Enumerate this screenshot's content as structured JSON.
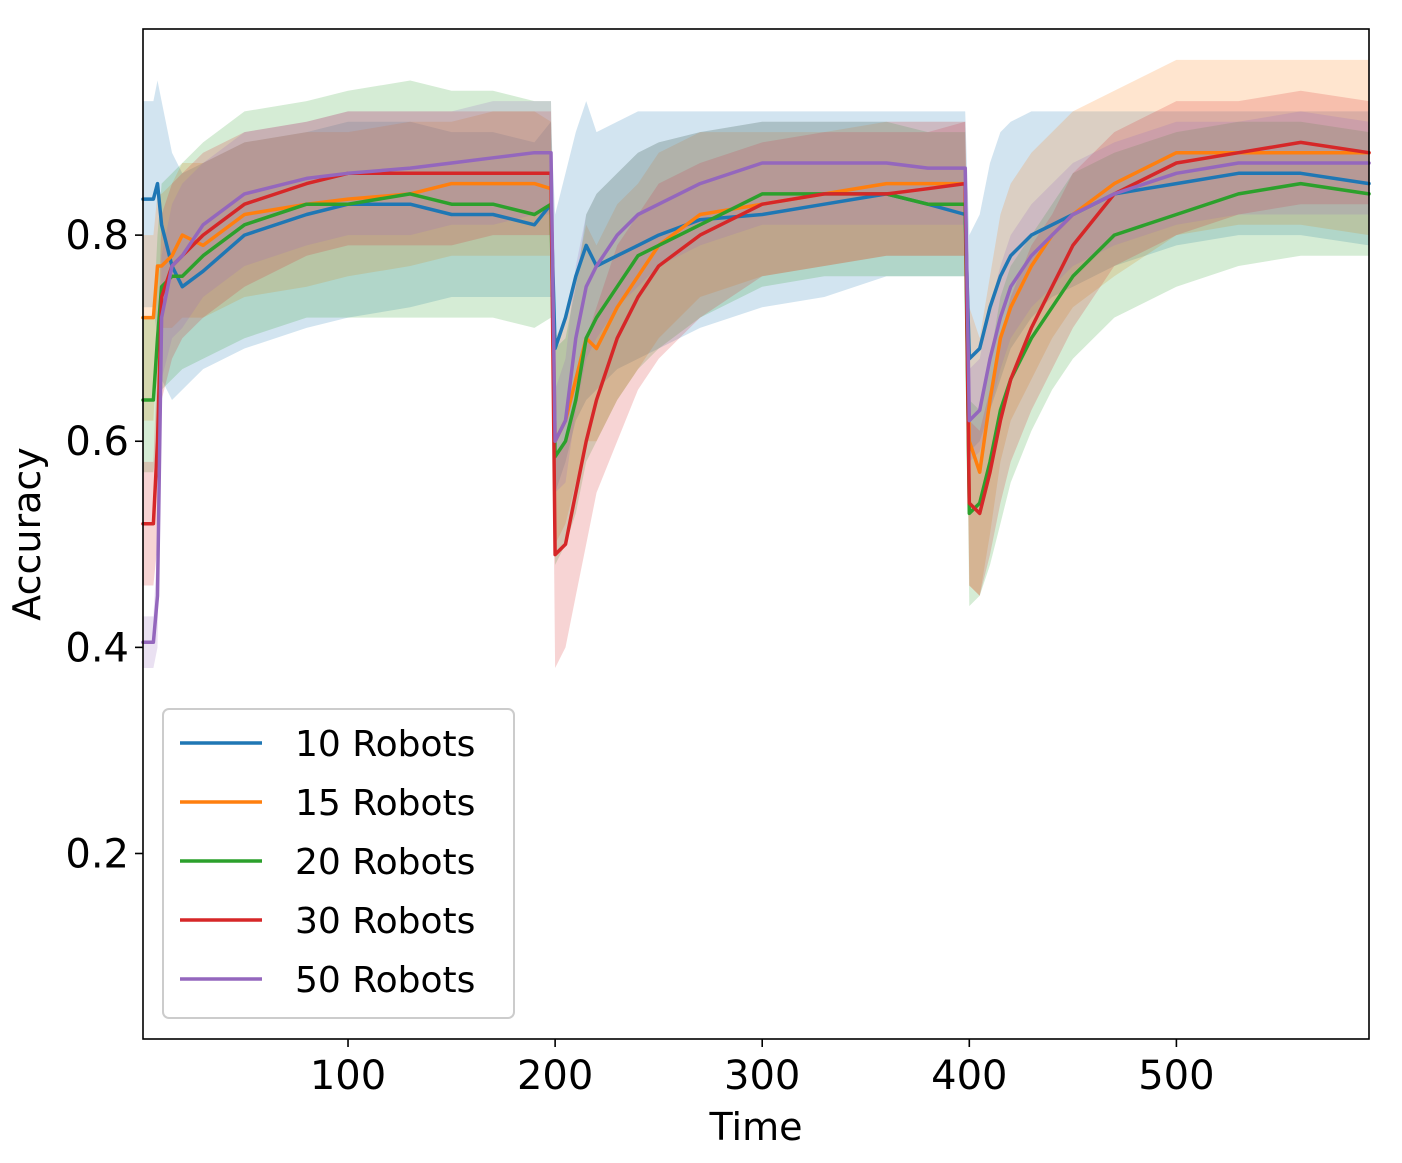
{
  "chart_data": {
    "type": "line",
    "title": "",
    "xlabel": "Time",
    "ylabel": "Accuracy",
    "xlim": [
      1,
      593
    ],
    "ylim": [
      0.02,
      1.0
    ],
    "xticks": [
      100,
      200,
      300,
      400,
      500
    ],
    "xtick_labels": [
      "100",
      "200",
      "300",
      "400",
      "500"
    ],
    "yticks": [
      0.2,
      0.4,
      0.6,
      0.8
    ],
    "ytick_labels": [
      "0.2",
      "0.4",
      "0.6",
      "0.8"
    ],
    "grid": false,
    "legend_position": "lower-left",
    "series": [
      {
        "name": "10 Robots",
        "color": "#1f77b4",
        "x": [
          1,
          6,
          8,
          10,
          15,
          20,
          30,
          50,
          80,
          100,
          130,
          150,
          170,
          190,
          198,
          200,
          205,
          210,
          215,
          220,
          230,
          240,
          250,
          270,
          300,
          330,
          360,
          380,
          398,
          400,
          405,
          410,
          415,
          420,
          430,
          440,
          450,
          470,
          500,
          530,
          560,
          593
        ],
        "values": [
          0.835,
          0.835,
          0.85,
          0.81,
          0.77,
          0.75,
          0.765,
          0.8,
          0.82,
          0.83,
          0.83,
          0.82,
          0.82,
          0.81,
          0.83,
          0.69,
          0.72,
          0.76,
          0.79,
          0.77,
          0.78,
          0.79,
          0.8,
          0.815,
          0.82,
          0.83,
          0.84,
          0.83,
          0.82,
          0.68,
          0.69,
          0.73,
          0.76,
          0.78,
          0.8,
          0.81,
          0.82,
          0.84,
          0.85,
          0.86,
          0.86,
          0.85
        ],
        "lower": [
          0.73,
          0.73,
          0.7,
          0.66,
          0.64,
          0.65,
          0.67,
          0.69,
          0.71,
          0.72,
          0.73,
          0.74,
          0.74,
          0.74,
          0.74,
          0.55,
          0.58,
          0.62,
          0.64,
          0.65,
          0.67,
          0.68,
          0.69,
          0.71,
          0.73,
          0.74,
          0.76,
          0.76,
          0.76,
          0.59,
          0.6,
          0.63,
          0.66,
          0.69,
          0.72,
          0.74,
          0.75,
          0.77,
          0.79,
          0.8,
          0.8,
          0.79
        ],
        "upper": [
          0.93,
          0.93,
          0.95,
          0.93,
          0.88,
          0.86,
          0.87,
          0.89,
          0.9,
          0.91,
          0.91,
          0.9,
          0.9,
          0.89,
          0.91,
          0.82,
          0.86,
          0.9,
          0.93,
          0.9,
          0.91,
          0.92,
          0.92,
          0.92,
          0.92,
          0.92,
          0.92,
          0.92,
          0.92,
          0.8,
          0.82,
          0.87,
          0.9,
          0.91,
          0.92,
          0.92,
          0.92,
          0.92,
          0.92,
          0.92,
          0.92,
          0.92
        ]
      },
      {
        "name": "15 Robots",
        "color": "#ff7f0e",
        "x": [
          1,
          6,
          8,
          10,
          15,
          20,
          30,
          50,
          80,
          100,
          130,
          150,
          170,
          190,
          198,
          200,
          205,
          210,
          215,
          220,
          230,
          240,
          250,
          270,
          300,
          330,
          360,
          380,
          398,
          400,
          405,
          410,
          415,
          420,
          430,
          440,
          450,
          470,
          500,
          530,
          560,
          593
        ],
        "values": [
          0.72,
          0.72,
          0.77,
          0.77,
          0.78,
          0.8,
          0.79,
          0.82,
          0.83,
          0.835,
          0.84,
          0.85,
          0.85,
          0.85,
          0.845,
          0.6,
          0.62,
          0.66,
          0.7,
          0.69,
          0.73,
          0.76,
          0.79,
          0.82,
          0.83,
          0.84,
          0.85,
          0.85,
          0.85,
          0.6,
          0.57,
          0.64,
          0.7,
          0.73,
          0.77,
          0.8,
          0.82,
          0.85,
          0.88,
          0.88,
          0.88,
          0.88
        ],
        "lower": [
          0.62,
          0.62,
          0.7,
          0.71,
          0.71,
          0.72,
          0.72,
          0.74,
          0.75,
          0.76,
          0.77,
          0.78,
          0.78,
          0.78,
          0.78,
          0.5,
          0.52,
          0.56,
          0.6,
          0.6,
          0.64,
          0.67,
          0.7,
          0.74,
          0.76,
          0.77,
          0.78,
          0.78,
          0.78,
          0.46,
          0.45,
          0.51,
          0.58,
          0.62,
          0.66,
          0.7,
          0.73,
          0.76,
          0.8,
          0.81,
          0.81,
          0.8
        ],
        "upper": [
          0.8,
          0.8,
          0.84,
          0.84,
          0.85,
          0.87,
          0.87,
          0.89,
          0.9,
          0.9,
          0.91,
          0.91,
          0.92,
          0.92,
          0.91,
          0.7,
          0.72,
          0.76,
          0.81,
          0.79,
          0.83,
          0.85,
          0.88,
          0.9,
          0.9,
          0.9,
          0.91,
          0.91,
          0.91,
          0.73,
          0.7,
          0.76,
          0.82,
          0.85,
          0.88,
          0.9,
          0.92,
          0.94,
          0.97,
          0.97,
          0.97,
          0.97
        ]
      },
      {
        "name": "20 Robots",
        "color": "#2ca02c",
        "x": [
          1,
          6,
          8,
          10,
          15,
          20,
          30,
          50,
          80,
          100,
          130,
          150,
          170,
          190,
          198,
          200,
          205,
          210,
          215,
          220,
          230,
          240,
          250,
          270,
          300,
          330,
          360,
          380,
          398,
          400,
          405,
          410,
          415,
          420,
          430,
          440,
          450,
          470,
          500,
          530,
          560,
          593
        ],
        "values": [
          0.64,
          0.64,
          0.7,
          0.75,
          0.76,
          0.76,
          0.78,
          0.81,
          0.83,
          0.83,
          0.84,
          0.83,
          0.83,
          0.82,
          0.83,
          0.585,
          0.6,
          0.64,
          0.7,
          0.72,
          0.75,
          0.78,
          0.79,
          0.81,
          0.84,
          0.84,
          0.84,
          0.83,
          0.83,
          0.53,
          0.54,
          0.58,
          0.63,
          0.66,
          0.7,
          0.73,
          0.76,
          0.8,
          0.82,
          0.84,
          0.85,
          0.84
        ],
        "lower": [
          0.57,
          0.57,
          0.6,
          0.65,
          0.66,
          0.67,
          0.68,
          0.7,
          0.72,
          0.72,
          0.72,
          0.72,
          0.72,
          0.71,
          0.72,
          0.48,
          0.5,
          0.53,
          0.58,
          0.6,
          0.64,
          0.67,
          0.69,
          0.72,
          0.75,
          0.76,
          0.76,
          0.76,
          0.76,
          0.44,
          0.45,
          0.48,
          0.52,
          0.56,
          0.61,
          0.65,
          0.68,
          0.72,
          0.75,
          0.77,
          0.78,
          0.78
        ],
        "upper": [
          0.72,
          0.72,
          0.8,
          0.85,
          0.86,
          0.87,
          0.89,
          0.92,
          0.93,
          0.94,
          0.95,
          0.94,
          0.94,
          0.93,
          0.93,
          0.69,
          0.7,
          0.75,
          0.82,
          0.84,
          0.86,
          0.88,
          0.89,
          0.9,
          0.91,
          0.91,
          0.91,
          0.9,
          0.9,
          0.64,
          0.63,
          0.68,
          0.74,
          0.77,
          0.8,
          0.83,
          0.86,
          0.88,
          0.9,
          0.91,
          0.91,
          0.9
        ]
      },
      {
        "name": "30 Robots",
        "color": "#d62728",
        "x": [
          1,
          6,
          8,
          10,
          15,
          20,
          30,
          50,
          80,
          100,
          130,
          150,
          170,
          190,
          198,
          200,
          205,
          210,
          215,
          220,
          230,
          240,
          250,
          270,
          300,
          330,
          360,
          380,
          398,
          400,
          405,
          410,
          415,
          420,
          430,
          440,
          450,
          470,
          500,
          530,
          560,
          593
        ],
        "values": [
          0.52,
          0.52,
          0.6,
          0.74,
          0.77,
          0.78,
          0.8,
          0.83,
          0.85,
          0.86,
          0.86,
          0.86,
          0.86,
          0.86,
          0.86,
          0.49,
          0.5,
          0.55,
          0.6,
          0.64,
          0.7,
          0.74,
          0.77,
          0.8,
          0.83,
          0.84,
          0.84,
          0.845,
          0.85,
          0.54,
          0.53,
          0.57,
          0.62,
          0.66,
          0.71,
          0.75,
          0.79,
          0.84,
          0.87,
          0.88,
          0.89,
          0.88
        ],
        "lower": [
          0.46,
          0.46,
          0.5,
          0.64,
          0.68,
          0.7,
          0.72,
          0.75,
          0.78,
          0.79,
          0.79,
          0.79,
          0.8,
          0.8,
          0.8,
          0.38,
          0.4,
          0.45,
          0.5,
          0.55,
          0.6,
          0.65,
          0.68,
          0.72,
          0.76,
          0.77,
          0.78,
          0.78,
          0.78,
          0.46,
          0.45,
          0.49,
          0.54,
          0.58,
          0.63,
          0.67,
          0.71,
          0.77,
          0.8,
          0.82,
          0.83,
          0.83
        ],
        "upper": [
          0.58,
          0.58,
          0.68,
          0.82,
          0.85,
          0.86,
          0.88,
          0.9,
          0.91,
          0.92,
          0.92,
          0.92,
          0.92,
          0.92,
          0.92,
          0.59,
          0.6,
          0.65,
          0.7,
          0.73,
          0.79,
          0.82,
          0.85,
          0.87,
          0.89,
          0.9,
          0.9,
          0.9,
          0.91,
          0.62,
          0.61,
          0.65,
          0.7,
          0.74,
          0.79,
          0.82,
          0.86,
          0.9,
          0.93,
          0.93,
          0.94,
          0.93
        ]
      },
      {
        "name": "50 Robots",
        "color": "#9467bd",
        "x": [
          1,
          6,
          8,
          10,
          15,
          20,
          30,
          50,
          80,
          100,
          130,
          150,
          170,
          190,
          198,
          200,
          205,
          210,
          215,
          220,
          230,
          240,
          250,
          270,
          300,
          330,
          360,
          380,
          398,
          400,
          405,
          410,
          415,
          420,
          430,
          440,
          450,
          470,
          500,
          530,
          560,
          593
        ],
        "values": [
          0.405,
          0.405,
          0.45,
          0.72,
          0.77,
          0.78,
          0.81,
          0.84,
          0.855,
          0.86,
          0.865,
          0.87,
          0.875,
          0.88,
          0.88,
          0.6,
          0.62,
          0.7,
          0.75,
          0.77,
          0.8,
          0.82,
          0.83,
          0.85,
          0.87,
          0.87,
          0.87,
          0.865,
          0.865,
          0.62,
          0.63,
          0.68,
          0.72,
          0.75,
          0.78,
          0.8,
          0.82,
          0.84,
          0.86,
          0.87,
          0.87,
          0.87
        ],
        "lower": [
          0.38,
          0.38,
          0.4,
          0.66,
          0.7,
          0.71,
          0.74,
          0.77,
          0.79,
          0.8,
          0.8,
          0.81,
          0.81,
          0.82,
          0.82,
          0.55,
          0.56,
          0.63,
          0.68,
          0.7,
          0.73,
          0.75,
          0.77,
          0.79,
          0.81,
          0.81,
          0.81,
          0.81,
          0.81,
          0.58,
          0.59,
          0.63,
          0.67,
          0.7,
          0.73,
          0.75,
          0.77,
          0.79,
          0.81,
          0.82,
          0.82,
          0.82
        ],
        "upper": [
          0.43,
          0.43,
          0.5,
          0.78,
          0.83,
          0.85,
          0.87,
          0.9,
          0.91,
          0.92,
          0.92,
          0.92,
          0.93,
          0.93,
          0.93,
          0.65,
          0.68,
          0.77,
          0.82,
          0.84,
          0.86,
          0.88,
          0.89,
          0.9,
          0.91,
          0.91,
          0.91,
          0.91,
          0.91,
          0.67,
          0.68,
          0.73,
          0.77,
          0.8,
          0.83,
          0.85,
          0.87,
          0.89,
          0.91,
          0.91,
          0.92,
          0.91
        ]
      }
    ]
  }
}
